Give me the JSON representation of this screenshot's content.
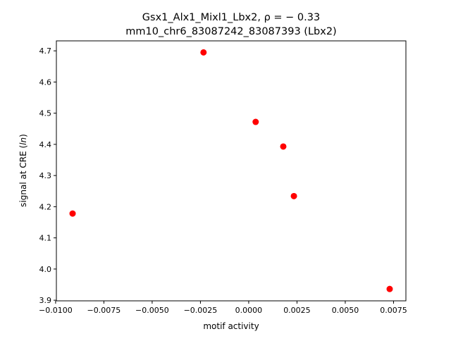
{
  "chart_data": {
    "type": "scatter",
    "title_line1": "Gsx1_Alx1_Mixl1_Lbx2, ρ = − 0.33",
    "title_line2": "mm10_chr6_83087242_83087393 (Lbx2)",
    "xlabel": "motif activity",
    "ylabel": "signal at CRE (ln)",
    "xlim": [
      -0.00996,
      0.00814
    ],
    "ylim": [
      3.898,
      4.732
    ],
    "xticks": [
      -0.01,
      -0.0075,
      -0.005,
      -0.0025,
      0.0,
      0.0025,
      0.005,
      0.0075
    ],
    "xtick_labels": [
      "−0.0100",
      "−0.0075",
      "−0.0050",
      "−0.0025",
      "0.0000",
      "0.0025",
      "0.0050",
      "0.0075"
    ],
    "yticks": [
      3.9,
      4.0,
      4.1,
      4.2,
      4.3,
      4.4,
      4.5,
      4.6,
      4.7
    ],
    "ytick_labels": [
      "3.9",
      "4.0",
      "4.1",
      "4.2",
      "4.3",
      "4.4",
      "4.5",
      "4.6",
      "4.7"
    ],
    "grid": false,
    "marker_color": "#ff0000",
    "points": [
      {
        "x": -0.00912,
        "y": 4.178
      },
      {
        "x": -0.00234,
        "y": 4.695
      },
      {
        "x": 0.00036,
        "y": 4.472
      },
      {
        "x": 0.00179,
        "y": 4.393
      },
      {
        "x": 0.00234,
        "y": 4.234
      },
      {
        "x": 0.0073,
        "y": 3.936
      }
    ]
  }
}
